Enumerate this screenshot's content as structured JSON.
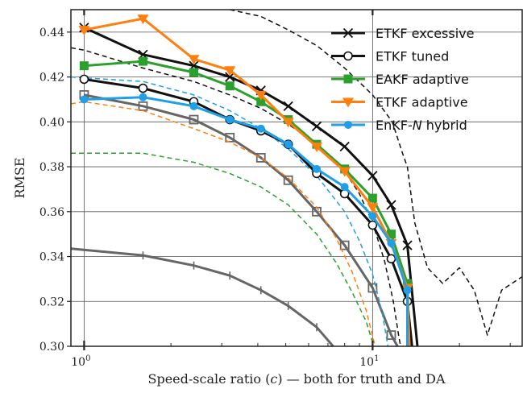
{
  "chart_data": {
    "type": "line",
    "xlabel": "Speed-scale ratio ($c$) — both for truth and DA",
    "ylabel": "RMSE",
    "x_scale": "log",
    "xlim": [
      0.9,
      33
    ],
    "ylim": [
      0.3,
      0.45
    ],
    "x_ticks": [
      {
        "value": 1,
        "label": "10",
        "sup": "0"
      },
      {
        "value": 10,
        "label": "10",
        "sup": "1"
      }
    ],
    "y_ticks": [
      0.3,
      0.32,
      0.34,
      0.36,
      0.38,
      0.4,
      0.42,
      0.44
    ],
    "y_tick_labels": [
      "0.30",
      "0.32",
      "0.34",
      "0.36",
      "0.38",
      "0.40",
      "0.42",
      "0.44"
    ],
    "grid": "horizontal at y ticks, vertical at decades",
    "legend_position": "top-right",
    "x": [
      1.0,
      1.6,
      2.4,
      3.2,
      4.1,
      5.1,
      6.4,
      8.0,
      10.0,
      11.6,
      13.2
    ],
    "series": [
      {
        "name": "ETKF excessive",
        "color": "#111111",
        "marker": "x",
        "style": "solid",
        "width": 3,
        "legend": true,
        "values": [
          0.442,
          0.43,
          0.425,
          0.42,
          0.414,
          0.407,
          0.398,
          0.389,
          0.376,
          0.363,
          0.345
        ],
        "tail": [
          [
            14.3,
            0.3
          ]
        ]
      },
      {
        "name": "ETKF tuned",
        "color": "#111111",
        "marker": "o",
        "style": "solid",
        "width": 3,
        "legend": true,
        "values": [
          0.419,
          0.415,
          0.409,
          0.401,
          0.396,
          0.39,
          0.377,
          0.368,
          0.354,
          0.339,
          0.32
        ],
        "tail": [
          [
            13.7,
            0.3
          ]
        ]
      },
      {
        "name": "EAKF adaptive",
        "color": "#2ca02c",
        "marker": "s",
        "style": "solid",
        "width": 3,
        "legend": true,
        "values": [
          0.425,
          0.427,
          0.422,
          0.416,
          0.409,
          0.401,
          0.39,
          0.379,
          0.366,
          0.35,
          0.328
        ],
        "tail": [
          [
            13.4,
            0.3
          ]
        ]
      },
      {
        "name": "ETKF adaptive",
        "color": "#ff7f0e",
        "marker": "v",
        "style": "solid",
        "width": 3,
        "legend": true,
        "values": [
          0.441,
          0.446,
          0.428,
          0.423,
          0.412,
          0.4,
          0.389,
          0.378,
          0.362,
          0.346,
          0.326
        ],
        "tail": [
          [
            13.4,
            0.3
          ]
        ]
      },
      {
        "name": "EnKF-$N$ hybrid",
        "color": "#1f9fe8",
        "marker": "o",
        "style": "solid",
        "width": 3,
        "legend": true,
        "values": [
          0.41,
          0.411,
          0.407,
          0.401,
          0.397,
          0.39,
          0.379,
          0.371,
          0.358,
          0.346,
          0.325
        ],
        "tail": [
          [
            13.2,
            0.3
          ]
        ]
      },
      {
        "name": "",
        "color": "#666666",
        "marker": "s-open",
        "style": "solid",
        "width": 3,
        "legend": false,
        "points": [
          [
            1.0,
            0.412
          ],
          [
            1.6,
            0.407
          ],
          [
            2.4,
            0.401
          ],
          [
            3.2,
            0.393
          ],
          [
            4.1,
            0.384
          ],
          [
            5.1,
            0.374
          ],
          [
            6.4,
            0.36
          ],
          [
            8.0,
            0.345
          ],
          [
            10.0,
            0.326
          ],
          [
            11.6,
            0.305
          ],
          [
            12.2,
            0.3
          ]
        ]
      },
      {
        "name": "",
        "color": "#666666",
        "marker": "|",
        "style": "solid",
        "width": 3,
        "legend": false,
        "points": [
          [
            0.9,
            0.3435
          ],
          [
            1.6,
            0.3405
          ],
          [
            2.4,
            0.336
          ],
          [
            3.2,
            0.3315
          ],
          [
            4.1,
            0.325
          ],
          [
            5.1,
            0.318
          ],
          [
            6.4,
            0.3085
          ],
          [
            7.3,
            0.3
          ]
        ]
      },
      {
        "name": "",
        "color": "#111111",
        "marker": "none",
        "style": "dashed",
        "width": 1.5,
        "legend": false,
        "points": [
          [
            3.2,
            0.45
          ],
          [
            4.1,
            0.447
          ],
          [
            5.1,
            0.441
          ],
          [
            6.4,
            0.434
          ],
          [
            8.0,
            0.424
          ],
          [
            10.0,
            0.412
          ],
          [
            11.7,
            0.4
          ],
          [
            12.7,
            0.386
          ],
          [
            13.2,
            0.38
          ],
          [
            14.0,
            0.355
          ],
          [
            15.5,
            0.335
          ],
          [
            17.5,
            0.328
          ],
          [
            20.0,
            0.335
          ],
          [
            22.5,
            0.325
          ],
          [
            25.0,
            0.305
          ],
          [
            28.0,
            0.325
          ],
          [
            33.0,
            0.331
          ]
        ]
      },
      {
        "name": "",
        "color": "#111111",
        "marker": "none",
        "style": "dashed",
        "width": 1.5,
        "legend": false,
        "points": [
          [
            0.9,
            0.433
          ],
          [
            1.0,
            0.432
          ],
          [
            1.6,
            0.424
          ],
          [
            2.4,
            0.418
          ],
          [
            3.2,
            0.412
          ],
          [
            4.1,
            0.406
          ],
          [
            5.1,
            0.399
          ],
          [
            6.4,
            0.39
          ],
          [
            8.0,
            0.378
          ],
          [
            9.0,
            0.368
          ],
          [
            10.0,
            0.355
          ],
          [
            11.0,
            0.338
          ],
          [
            11.8,
            0.32
          ],
          [
            12.3,
            0.305
          ],
          [
            12.5,
            0.3
          ]
        ]
      },
      {
        "name": "",
        "color": "#1f9fe8",
        "marker": "none",
        "style": "dashed",
        "width": 1.5,
        "legend": false,
        "points": [
          [
            0.9,
            0.42
          ],
          [
            1.6,
            0.418
          ],
          [
            2.4,
            0.412
          ],
          [
            3.2,
            0.405
          ],
          [
            4.1,
            0.397
          ],
          [
            5.1,
            0.388
          ],
          [
            6.4,
            0.376
          ],
          [
            8.0,
            0.36
          ],
          [
            9.0,
            0.347
          ],
          [
            10.0,
            0.332
          ],
          [
            10.8,
            0.315
          ],
          [
            11.3,
            0.3
          ]
        ]
      },
      {
        "name": "",
        "color": "#ff7f0e",
        "marker": "none",
        "style": "dashed",
        "width": 1.5,
        "legend": false,
        "points": [
          [
            0.9,
            0.408
          ],
          [
            1.0,
            0.409
          ],
          [
            1.6,
            0.405
          ],
          [
            2.4,
            0.397
          ],
          [
            3.2,
            0.391
          ],
          [
            4.1,
            0.384
          ],
          [
            5.1,
            0.375
          ],
          [
            6.4,
            0.362
          ],
          [
            7.5,
            0.348
          ],
          [
            8.5,
            0.333
          ],
          [
            9.5,
            0.316
          ],
          [
            10.2,
            0.3
          ]
        ]
      },
      {
        "name": "",
        "color": "#2ca02c",
        "marker": "none",
        "style": "dashed",
        "width": 1.5,
        "legend": false,
        "points": [
          [
            0.9,
            0.386
          ],
          [
            1.6,
            0.386
          ],
          [
            2.4,
            0.382
          ],
          [
            3.2,
            0.377
          ],
          [
            4.1,
            0.371
          ],
          [
            5.1,
            0.363
          ],
          [
            6.4,
            0.35
          ],
          [
            7.5,
            0.337
          ],
          [
            8.5,
            0.324
          ],
          [
            9.5,
            0.311
          ],
          [
            10.1,
            0.3
          ]
        ]
      }
    ]
  }
}
